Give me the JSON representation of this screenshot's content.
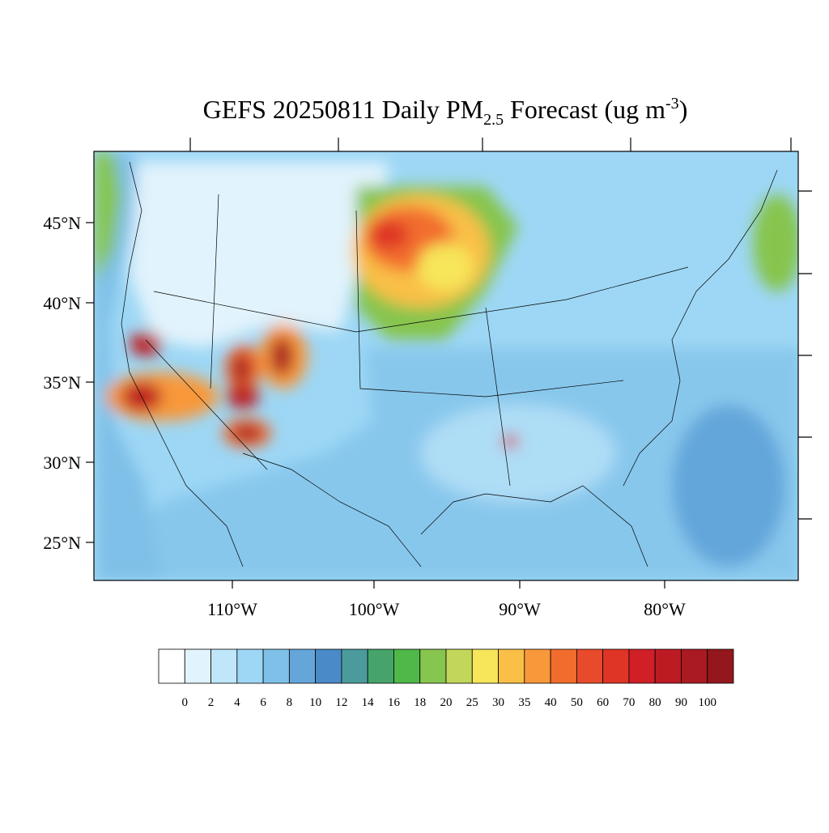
{
  "header": {
    "title": {
      "main": "GEFS 20250811 Daily PM",
      "sub": "2.5",
      "rest": " Forecast (ug m",
      "sup": "-3",
      "end": ")"
    }
  },
  "map": {
    "lat_labels": [
      "45°N",
      "40°N",
      "35°N",
      "30°N",
      "25°N"
    ],
    "lon_labels": [
      "110°W",
      "100°W",
      "90°W",
      "80°W"
    ]
  },
  "colorbar": {
    "levels": [
      0,
      2,
      4,
      6,
      8,
      10,
      12,
      14,
      16,
      18,
      20,
      25,
      30,
      35,
      40,
      50,
      60,
      70,
      80,
      90,
      100
    ],
    "colors": [
      "#ffffff",
      "#e1f3fc",
      "#bfe6f9",
      "#9dd7f5",
      "#7fc0e8",
      "#64a6da",
      "#4a8ac8",
      "#4b9a9c",
      "#46a46a",
      "#4fb848",
      "#86c54e",
      "#c2d75a",
      "#f7e55a",
      "#f9bf47",
      "#f8983a",
      "#f26d2d",
      "#e84b2b",
      "#de3527",
      "#d01f27",
      "#bd1b24",
      "#a91a22",
      "#93171d"
    ]
  }
}
